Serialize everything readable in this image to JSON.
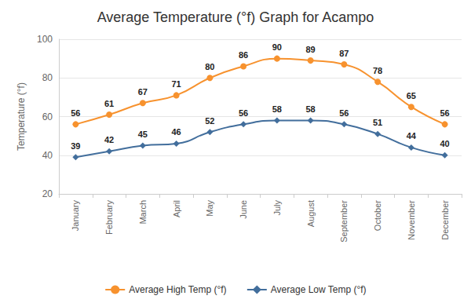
{
  "chart_data": {
    "type": "line",
    "title": "Average Temperature (°f) Graph for Acampo",
    "y_label": "Temperature (°f)",
    "categories": [
      "January",
      "February",
      "March",
      "April",
      "May",
      "June",
      "July",
      "August",
      "September",
      "October",
      "November",
      "December"
    ],
    "series": [
      {
        "name": "Average High Temp (°f)",
        "color": "#f7922e",
        "marker": "circle",
        "values": [
          56,
          61,
          67,
          71,
          80,
          86,
          90,
          89,
          87,
          78,
          65,
          56
        ]
      },
      {
        "name": "Average Low Temp (°f)",
        "color": "#426e9c",
        "marker": "diamond",
        "values": [
          39,
          42,
          45,
          46,
          52,
          56,
          58,
          58,
          56,
          51,
          44,
          40
        ]
      }
    ],
    "ylim": [
      20,
      100
    ],
    "yticks": [
      20,
      40,
      60,
      80,
      100
    ],
    "grid": true,
    "legend": "bottom",
    "data_labels": true
  }
}
